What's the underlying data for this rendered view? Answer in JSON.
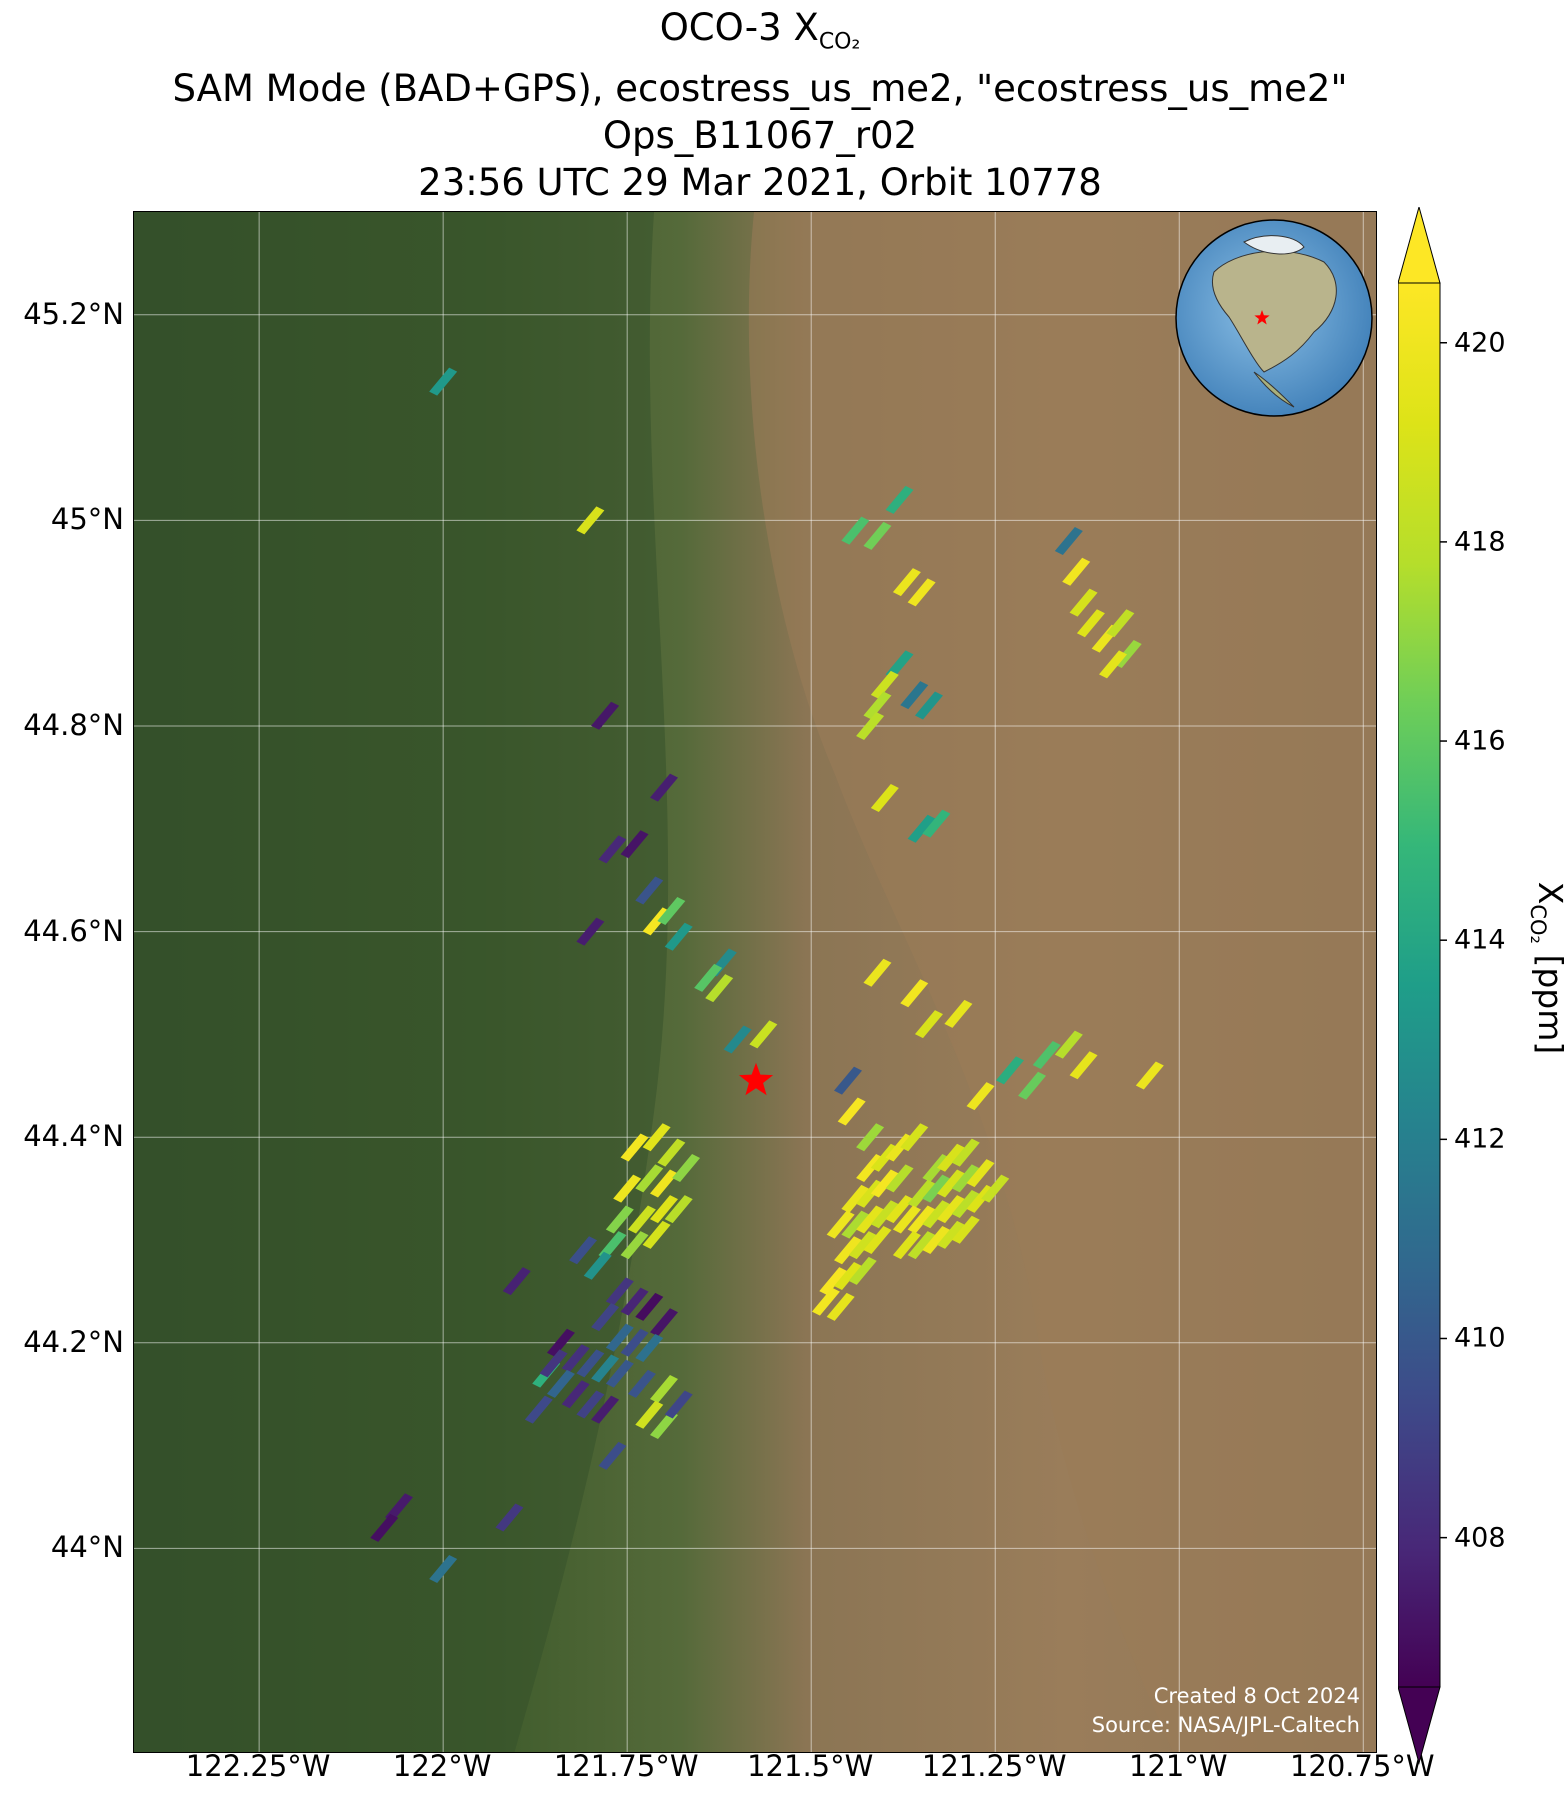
{
  "title": {
    "line1_prefix": "OCO-3 X",
    "line1_sub": "CO₂",
    "line2": "SAM Mode (BAD+GPS), ecostress_us_me2, \"ecostress_us_me2\"",
    "line3": "Ops_B11067_r02",
    "line4": "23:56 UTC 29 Mar 2021, Orbit 10778"
  },
  "map": {
    "lon_range": [
      -122.42,
      -120.73
    ],
    "lat_range": [
      43.8,
      45.3
    ],
    "lat_ticks": [
      {
        "value": 45.2,
        "label": "45.2°N"
      },
      {
        "value": 45.0,
        "label": "45°N"
      },
      {
        "value": 44.8,
        "label": "44.8°N"
      },
      {
        "value": 44.6,
        "label": "44.6°N"
      },
      {
        "value": 44.4,
        "label": "44.4°N"
      },
      {
        "value": 44.2,
        "label": "44.2°N"
      },
      {
        "value": 44.0,
        "label": "44°N"
      }
    ],
    "lon_ticks": [
      {
        "value": -122.25,
        "label": "122.25°W"
      },
      {
        "value": -122.0,
        "label": "122°W"
      },
      {
        "value": -121.75,
        "label": "121.75°W"
      },
      {
        "value": -121.5,
        "label": "121.5°W"
      },
      {
        "value": -121.25,
        "label": "121.25°W"
      },
      {
        "value": -121.0,
        "label": "121°W"
      },
      {
        "value": -120.75,
        "label": "120.75°W"
      }
    ],
    "target": {
      "lon": -121.575,
      "lat": 44.455,
      "color": "#ff0000"
    },
    "credits": {
      "created": "Created 8 Oct 2024",
      "source": "Source: NASA/JPL-Caltech"
    },
    "colors": {
      "forest": "#3c5a2b",
      "desert": "#9a7c58",
      "grid": "#ffffff"
    }
  },
  "colorbar": {
    "label_prefix": "X",
    "label_sub": "CO₂",
    "label_suffix": " [ppm]",
    "vmin": 406.5,
    "vmax": 420.6,
    "extend": "both",
    "ticks": [
      420,
      418,
      416,
      414,
      412,
      410,
      408
    ]
  },
  "soundings": [
    {
      "lon": -122.0,
      "lat": 45.135,
      "xco2": 413.3
    },
    {
      "lon": -121.8,
      "lat": 45.0,
      "xco2": 419.0
    },
    {
      "lon": -121.38,
      "lat": 45.02,
      "xco2": 414.5
    },
    {
      "lon": -121.41,
      "lat": 44.985,
      "xco2": 416.4
    },
    {
      "lon": -121.44,
      "lat": 44.99,
      "xco2": 415.5
    },
    {
      "lon": -121.37,
      "lat": 44.94,
      "xco2": 419.8
    },
    {
      "lon": -121.35,
      "lat": 44.93,
      "xco2": 420.0
    },
    {
      "lon": -121.38,
      "lat": 44.86,
      "xco2": 413.8
    },
    {
      "lon": -121.4,
      "lat": 44.84,
      "xco2": 418.6
    },
    {
      "lon": -121.36,
      "lat": 44.83,
      "xco2": 411.5
    },
    {
      "lon": -121.41,
      "lat": 44.82,
      "xco2": 417.7
    },
    {
      "lon": -121.34,
      "lat": 44.82,
      "xco2": 413.1
    },
    {
      "lon": -121.42,
      "lat": 44.8,
      "xco2": 418.0
    },
    {
      "lon": -121.15,
      "lat": 44.98,
      "xco2": 411.3
    },
    {
      "lon": -121.14,
      "lat": 44.95,
      "xco2": 420.1
    },
    {
      "lon": -121.13,
      "lat": 44.92,
      "xco2": 418.9
    },
    {
      "lon": -121.12,
      "lat": 44.9,
      "xco2": 419.3
    },
    {
      "lon": -121.1,
      "lat": 44.885,
      "xco2": 419.8
    },
    {
      "lon": -121.08,
      "lat": 44.9,
      "xco2": 418.2
    },
    {
      "lon": -121.07,
      "lat": 44.87,
      "xco2": 417.2
    },
    {
      "lon": -121.09,
      "lat": 44.86,
      "xco2": 419.5
    },
    {
      "lon": -121.78,
      "lat": 44.81,
      "xco2": 407.3
    },
    {
      "lon": -121.4,
      "lat": 44.73,
      "xco2": 419.2
    },
    {
      "lon": -121.35,
      "lat": 44.7,
      "xco2": 413.6
    },
    {
      "lon": -121.33,
      "lat": 44.705,
      "xco2": 414.8
    },
    {
      "lon": -121.7,
      "lat": 44.74,
      "xco2": 407.6
    },
    {
      "lon": -121.77,
      "lat": 44.68,
      "xco2": 407.9
    },
    {
      "lon": -121.74,
      "lat": 44.685,
      "xco2": 407.2
    },
    {
      "lon": -121.8,
      "lat": 44.6,
      "xco2": 407.5
    },
    {
      "lon": -121.72,
      "lat": 44.64,
      "xco2": 409.8
    },
    {
      "lon": -121.71,
      "lat": 44.61,
      "xco2": 420.3
    },
    {
      "lon": -121.69,
      "lat": 44.62,
      "xco2": 416.0
    },
    {
      "lon": -121.68,
      "lat": 44.595,
      "xco2": 413.3
    },
    {
      "lon": -121.62,
      "lat": 44.57,
      "xco2": 412.6
    },
    {
      "lon": -121.64,
      "lat": 44.555,
      "xco2": 415.8
    },
    {
      "lon": -121.625,
      "lat": 44.545,
      "xco2": 417.8
    },
    {
      "lon": -121.6,
      "lat": 44.495,
      "xco2": 412.5
    },
    {
      "lon": -121.565,
      "lat": 44.5,
      "xco2": 418.5
    },
    {
      "lon": -121.45,
      "lat": 44.455,
      "xco2": 410.0
    },
    {
      "lon": -121.445,
      "lat": 44.425,
      "xco2": 420.3
    },
    {
      "lon": -121.42,
      "lat": 44.4,
      "xco2": 417.3
    },
    {
      "lon": -121.41,
      "lat": 44.56,
      "xco2": 419.8
    },
    {
      "lon": -121.36,
      "lat": 44.54,
      "xco2": 420.1
    },
    {
      "lon": -121.34,
      "lat": 44.51,
      "xco2": 419.0
    },
    {
      "lon": -121.3,
      "lat": 44.52,
      "xco2": 419.6
    },
    {
      "lon": -121.27,
      "lat": 44.44,
      "xco2": 419.9
    },
    {
      "lon": -121.23,
      "lat": 44.465,
      "xco2": 414.4
    },
    {
      "lon": -121.2,
      "lat": 44.45,
      "xco2": 416.2
    },
    {
      "lon": -121.18,
      "lat": 44.48,
      "xco2": 415.6
    },
    {
      "lon": -121.15,
      "lat": 44.49,
      "xco2": 417.8
    },
    {
      "lon": -121.13,
      "lat": 44.47,
      "xco2": 419.6
    },
    {
      "lon": -121.04,
      "lat": 44.46,
      "xco2": 419.8
    },
    {
      "lon": -121.74,
      "lat": 44.39,
      "xco2": 420.2
    },
    {
      "lon": -121.71,
      "lat": 44.4,
      "xco2": 419.4
    },
    {
      "lon": -121.69,
      "lat": 44.385,
      "xco2": 418.2
    },
    {
      "lon": -121.75,
      "lat": 44.35,
      "xco2": 419.9
    },
    {
      "lon": -121.72,
      "lat": 44.36,
      "xco2": 417.5
    },
    {
      "lon": -121.7,
      "lat": 44.355,
      "xco2": 420.0
    },
    {
      "lon": -121.67,
      "lat": 44.37,
      "xco2": 417.0
    },
    {
      "lon": -121.76,
      "lat": 44.32,
      "xco2": 416.8
    },
    {
      "lon": -121.73,
      "lat": 44.32,
      "xco2": 418.6
    },
    {
      "lon": -121.7,
      "lat": 44.33,
      "xco2": 419.3
    },
    {
      "lon": -121.68,
      "lat": 44.33,
      "xco2": 417.9
    },
    {
      "lon": -121.77,
      "lat": 44.295,
      "xco2": 415.5
    },
    {
      "lon": -121.74,
      "lat": 44.295,
      "xco2": 417.2
    },
    {
      "lon": -121.71,
      "lat": 44.305,
      "xco2": 418.9
    },
    {
      "lon": -121.79,
      "lat": 44.275,
      "xco2": 413.0
    },
    {
      "lon": -121.81,
      "lat": 44.29,
      "xco2": 409.6
    },
    {
      "lon": -121.9,
      "lat": 44.26,
      "xco2": 407.7
    },
    {
      "lon": -121.76,
      "lat": 44.25,
      "xco2": 408.5
    },
    {
      "lon": -121.74,
      "lat": 44.24,
      "xco2": 407.8
    },
    {
      "lon": -121.72,
      "lat": 44.235,
      "xco2": 406.9
    },
    {
      "lon": -121.7,
      "lat": 44.22,
      "xco2": 407.2
    },
    {
      "lon": -121.78,
      "lat": 44.225,
      "xco2": 409.1
    },
    {
      "lon": -121.76,
      "lat": 44.205,
      "xco2": 410.7
    },
    {
      "lon": -121.74,
      "lat": 44.2,
      "xco2": 409.5
    },
    {
      "lon": -121.72,
      "lat": 44.195,
      "xco2": 411.2
    },
    {
      "lon": -121.84,
      "lat": 44.2,
      "xco2": 407.0
    },
    {
      "lon": -121.82,
      "lat": 44.185,
      "xco2": 408.3
    },
    {
      "lon": -121.8,
      "lat": 44.18,
      "xco2": 409.7
    },
    {
      "lon": -121.78,
      "lat": 44.175,
      "xco2": 412.2
    },
    {
      "lon": -121.76,
      "lat": 44.17,
      "xco2": 410.0
    },
    {
      "lon": -121.86,
      "lat": 44.17,
      "xco2": 414.6
    },
    {
      "lon": -121.84,
      "lat": 44.16,
      "xco2": 410.6
    },
    {
      "lon": -121.82,
      "lat": 44.15,
      "xco2": 407.9
    },
    {
      "lon": -121.8,
      "lat": 44.14,
      "xco2": 409.0
    },
    {
      "lon": -121.78,
      "lat": 44.135,
      "xco2": 407.5
    },
    {
      "lon": -121.73,
      "lat": 44.16,
      "xco2": 409.8
    },
    {
      "lon": -121.7,
      "lat": 44.155,
      "xco2": 417.5
    },
    {
      "lon": -121.72,
      "lat": 44.13,
      "xco2": 418.7
    },
    {
      "lon": -121.7,
      "lat": 44.12,
      "xco2": 417.0
    },
    {
      "lon": -121.68,
      "lat": 44.14,
      "xco2": 409.2
    },
    {
      "lon": -121.87,
      "lat": 44.135,
      "xco2": 409.3
    },
    {
      "lon": -121.77,
      "lat": 44.09,
      "xco2": 409.5
    },
    {
      "lon": -121.85,
      "lat": 44.18,
      "xco2": 408.5
    },
    {
      "lon": -122.06,
      "lat": 44.04,
      "xco2": 407.4
    },
    {
      "lon": -122.08,
      "lat": 44.02,
      "xco2": 407.0
    },
    {
      "lon": -122.0,
      "lat": 43.98,
      "xco2": 411.3
    },
    {
      "lon": -121.91,
      "lat": 44.03,
      "xco2": 408.6
    },
    {
      "lon": -121.42,
      "lat": 44.37,
      "xco2": 420.1
    },
    {
      "lon": -121.4,
      "lat": 44.38,
      "xco2": 419.1
    },
    {
      "lon": -121.38,
      "lat": 44.39,
      "xco2": 419.8
    },
    {
      "lon": -121.36,
      "lat": 44.4,
      "xco2": 418.9
    },
    {
      "lon": -121.44,
      "lat": 44.34,
      "xco2": 419.7
    },
    {
      "lon": -121.42,
      "lat": 44.345,
      "xco2": 419.0
    },
    {
      "lon": -121.4,
      "lat": 44.355,
      "xco2": 420.2
    },
    {
      "lon": -121.38,
      "lat": 44.36,
      "xco2": 417.8
    },
    {
      "lon": -121.46,
      "lat": 44.315,
      "xco2": 419.9
    },
    {
      "lon": -121.44,
      "lat": 44.315,
      "xco2": 417.6
    },
    {
      "lon": -121.42,
      "lat": 44.32,
      "xco2": 419.5
    },
    {
      "lon": -121.4,
      "lat": 44.325,
      "xco2": 418.4
    },
    {
      "lon": -121.38,
      "lat": 44.33,
      "xco2": 419.4
    },
    {
      "lon": -121.45,
      "lat": 44.29,
      "xco2": 420.0
    },
    {
      "lon": -121.43,
      "lat": 44.295,
      "xco2": 418.7
    },
    {
      "lon": -121.41,
      "lat": 44.3,
      "xco2": 419.3
    },
    {
      "lon": -121.47,
      "lat": 44.26,
      "xco2": 420.3
    },
    {
      "lon": -121.45,
      "lat": 44.265,
      "xco2": 419.2
    },
    {
      "lon": -121.43,
      "lat": 44.27,
      "xco2": 417.9
    },
    {
      "lon": -121.48,
      "lat": 44.24,
      "xco2": 420.1
    },
    {
      "lon": -121.46,
      "lat": 44.235,
      "xco2": 419.6
    },
    {
      "lon": -121.33,
      "lat": 44.37,
      "xco2": 417.5
    },
    {
      "lon": -121.31,
      "lat": 44.38,
      "xco2": 419.0
    },
    {
      "lon": -121.29,
      "lat": 44.385,
      "xco2": 418.2
    },
    {
      "lon": -121.35,
      "lat": 44.345,
      "xco2": 418.0
    },
    {
      "lon": -121.33,
      "lat": 44.35,
      "xco2": 416.6
    },
    {
      "lon": -121.31,
      "lat": 44.355,
      "xco2": 418.9
    },
    {
      "lon": -121.29,
      "lat": 44.36,
      "xco2": 417.3
    },
    {
      "lon": -121.27,
      "lat": 44.365,
      "xco2": 419.5
    },
    {
      "lon": -121.37,
      "lat": 44.32,
      "xco2": 419.8
    },
    {
      "lon": -121.35,
      "lat": 44.32,
      "xco2": 420.0
    },
    {
      "lon": -121.33,
      "lat": 44.325,
      "xco2": 418.5
    },
    {
      "lon": -121.31,
      "lat": 44.33,
      "xco2": 419.6
    },
    {
      "lon": -121.29,
      "lat": 44.335,
      "xco2": 418.0
    },
    {
      "lon": -121.27,
      "lat": 44.34,
      "xco2": 419.2
    },
    {
      "lon": -121.25,
      "lat": 44.35,
      "xco2": 418.4
    },
    {
      "lon": -121.37,
      "lat": 44.295,
      "xco2": 419.3
    },
    {
      "lon": -121.35,
      "lat": 44.295,
      "xco2": 418.1
    },
    {
      "lon": -121.33,
      "lat": 44.3,
      "xco2": 419.9
    },
    {
      "lon": -121.31,
      "lat": 44.305,
      "xco2": 418.6
    },
    {
      "lon": -121.29,
      "lat": 44.31,
      "xco2": 419.0
    }
  ]
}
